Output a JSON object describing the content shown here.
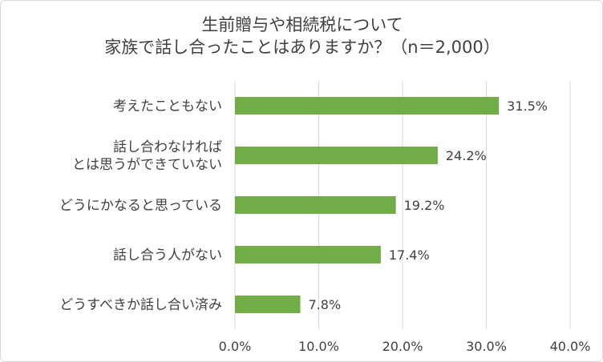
{
  "chart_data": {
    "type": "bar",
    "orientation": "horizontal",
    "title": [
      "生前贈与や相続税について",
      "家族で話し合ったことはありますか？（n＝2,000）"
    ],
    "categories": [
      [
        "考えたこともない"
      ],
      [
        "話し合わなければ",
        "とは思うができていない"
      ],
      [
        "どうにかなると思っている"
      ],
      [
        "話し合う人がない"
      ],
      [
        "どうすべきか話し合い済み"
      ]
    ],
    "values": [
      31.5,
      24.2,
      19.2,
      17.4,
      7.8
    ],
    "value_labels": [
      "31.5%",
      "24.2%",
      "19.2%",
      "17.4%",
      "7.8%"
    ],
    "xlim": [
      0,
      40
    ],
    "ticks": [
      "0.0%",
      "10.0%",
      "20.0%",
      "30.0%",
      "40.0%"
    ],
    "bar_color": "#70ad47",
    "grid": true
  }
}
